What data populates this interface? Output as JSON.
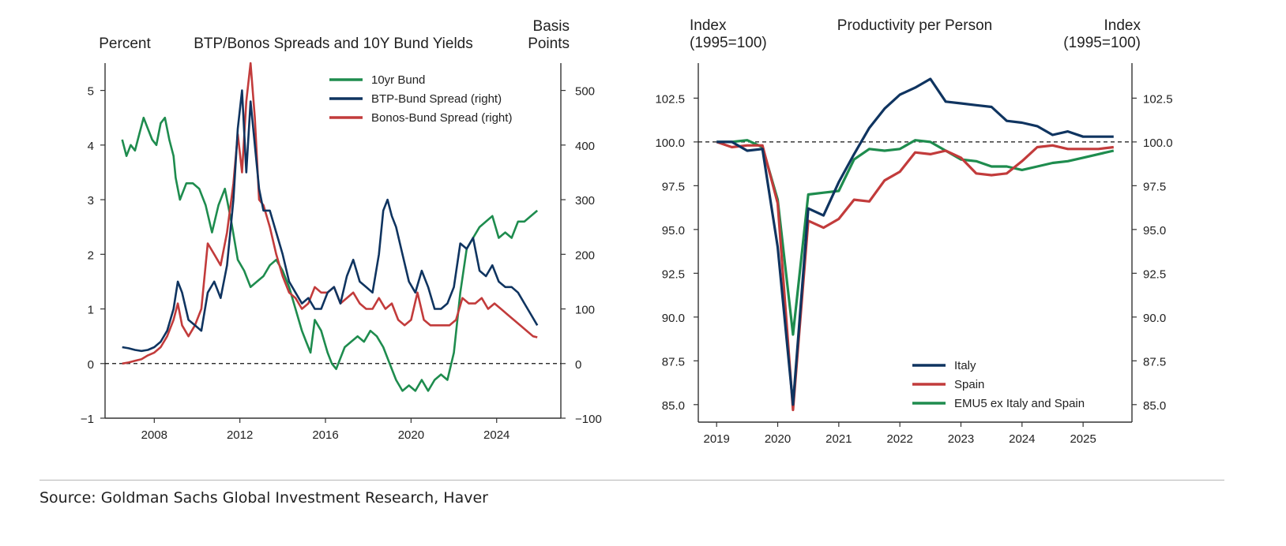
{
  "source": "Source: Goldman Sachs Global Investment Research, Haver",
  "chart_data": [
    {
      "type": "line",
      "title": "BTP/Bonos Spreads and 10Y Bund Yields",
      "ylabel_left": "Percent",
      "ylabel_right": [
        "Basis",
        "Points"
      ],
      "xlim": [
        2005.7,
        2027.0
      ],
      "ylim_left": [
        -1,
        5.5
      ],
      "ylim_right": [
        -100,
        550
      ],
      "x_ticks": [
        2008,
        2012,
        2016,
        2020,
        2024
      ],
      "y_ticks_left": [
        -1,
        0,
        1,
        2,
        3,
        4,
        5
      ],
      "y_ticks_right": [
        -100,
        0,
        100,
        200,
        300,
        400,
        500
      ],
      "y_tick_labels_left": [
        "−1",
        "0",
        "1",
        "2",
        "3",
        "4",
        "5"
      ],
      "y_tick_labels_right": [
        "−100",
        "0",
        "100",
        "200",
        "300",
        "400",
        "500"
      ],
      "reference_line": 0,
      "legend_position": "top-right",
      "series": [
        {
          "name": "10yr Bund",
          "axis": "left",
          "color": "#1e8c4e",
          "x": [
            2006.5,
            2006.7,
            2006.9,
            2007.1,
            2007.3,
            2007.5,
            2007.7,
            2007.9,
            2008.1,
            2008.3,
            2008.5,
            2008.7,
            2008.9,
            2009.0,
            2009.2,
            2009.5,
            2009.8,
            2010.1,
            2010.4,
            2010.7,
            2011.0,
            2011.3,
            2011.6,
            2011.9,
            2012.2,
            2012.5,
            2012.8,
            2013.1,
            2013.4,
            2013.7,
            2014.0,
            2014.3,
            2014.6,
            2014.9,
            2015.1,
            2015.3,
            2015.5,
            2015.8,
            2016.1,
            2016.3,
            2016.5,
            2016.7,
            2016.9,
            2017.2,
            2017.5,
            2017.8,
            2018.1,
            2018.4,
            2018.7,
            2019.0,
            2019.3,
            2019.6,
            2019.9,
            2020.2,
            2020.5,
            2020.8,
            2021.1,
            2021.4,
            2021.7,
            2022.0,
            2022.3,
            2022.6,
            2022.9,
            2023.2,
            2023.5,
            2023.8,
            2024.1,
            2024.4,
            2024.7,
            2025.0,
            2025.3,
            2025.6,
            2025.9
          ],
          "y": [
            4.1,
            3.8,
            4.0,
            3.9,
            4.2,
            4.5,
            4.3,
            4.1,
            4.0,
            4.4,
            4.5,
            4.1,
            3.8,
            3.4,
            3.0,
            3.3,
            3.3,
            3.2,
            2.9,
            2.4,
            2.9,
            3.2,
            2.6,
            1.9,
            1.7,
            1.4,
            1.5,
            1.6,
            1.8,
            1.9,
            1.7,
            1.4,
            1.0,
            0.6,
            0.4,
            0.2,
            0.8,
            0.6,
            0.2,
            0.0,
            -0.1,
            0.1,
            0.3,
            0.4,
            0.5,
            0.4,
            0.6,
            0.5,
            0.3,
            0.0,
            -0.3,
            -0.5,
            -0.4,
            -0.5,
            -0.3,
            -0.5,
            -0.3,
            -0.2,
            -0.3,
            0.2,
            1.3,
            2.1,
            2.3,
            2.5,
            2.6,
            2.7,
            2.3,
            2.4,
            2.3,
            2.6,
            2.6,
            2.7,
            2.8
          ]
        },
        {
          "name": "BTP-Bund Spread (right)",
          "axis": "right",
          "color": "#0f3460",
          "x": [
            2006.5,
            2006.8,
            2007.1,
            2007.4,
            2007.7,
            2008.0,
            2008.3,
            2008.6,
            2008.9,
            2009.1,
            2009.3,
            2009.6,
            2009.9,
            2010.2,
            2010.5,
            2010.8,
            2011.1,
            2011.4,
            2011.7,
            2011.9,
            2012.1,
            2012.3,
            2012.5,
            2012.7,
            2012.9,
            2013.1,
            2013.4,
            2013.7,
            2014.0,
            2014.3,
            2014.6,
            2014.9,
            2015.2,
            2015.5,
            2015.8,
            2016.1,
            2016.4,
            2016.7,
            2017.0,
            2017.3,
            2017.6,
            2017.9,
            2018.2,
            2018.5,
            2018.7,
            2018.9,
            2019.1,
            2019.3,
            2019.6,
            2019.9,
            2020.2,
            2020.5,
            2020.8,
            2021.1,
            2021.4,
            2021.7,
            2022.0,
            2022.3,
            2022.6,
            2022.9,
            2023.2,
            2023.5,
            2023.8,
            2024.1,
            2024.4,
            2024.7,
            2025.0,
            2025.3,
            2025.6,
            2025.9
          ],
          "y": [
            30,
            28,
            25,
            23,
            25,
            30,
            40,
            60,
            100,
            150,
            130,
            80,
            70,
            60,
            130,
            150,
            120,
            180,
            300,
            430,
            500,
            350,
            480,
            400,
            320,
            280,
            280,
            240,
            200,
            150,
            130,
            110,
            120,
            100,
            100,
            130,
            140,
            110,
            160,
            190,
            150,
            140,
            130,
            200,
            280,
            300,
            270,
            250,
            200,
            150,
            130,
            170,
            140,
            100,
            100,
            110,
            140,
            220,
            210,
            230,
            170,
            160,
            180,
            150,
            140,
            140,
            130,
            110,
            90,
            70
          ]
        },
        {
          "name": "Bonos-Bund Spread (right)",
          "axis": "right",
          "color": "#c23b3b",
          "x": [
            2006.5,
            2006.8,
            2007.1,
            2007.4,
            2007.7,
            2008.0,
            2008.3,
            2008.6,
            2008.9,
            2009.1,
            2009.3,
            2009.6,
            2009.9,
            2010.2,
            2010.5,
            2010.8,
            2011.1,
            2011.4,
            2011.7,
            2011.9,
            2012.1,
            2012.3,
            2012.5,
            2012.7,
            2012.9,
            2013.1,
            2013.4,
            2013.7,
            2014.0,
            2014.3,
            2014.6,
            2014.9,
            2015.2,
            2015.5,
            2015.8,
            2016.1,
            2016.4,
            2016.7,
            2017.0,
            2017.3,
            2017.6,
            2017.9,
            2018.2,
            2018.5,
            2018.8,
            2019.1,
            2019.4,
            2019.7,
            2020.0,
            2020.3,
            2020.6,
            2020.9,
            2021.2,
            2021.5,
            2021.8,
            2022.1,
            2022.4,
            2022.7,
            2023.0,
            2023.3,
            2023.6,
            2023.9,
            2024.2,
            2024.5,
            2024.8,
            2025.1,
            2025.4,
            2025.7,
            2025.9
          ],
          "y": [
            0,
            2,
            5,
            8,
            15,
            20,
            30,
            50,
            80,
            110,
            70,
            50,
            70,
            100,
            220,
            200,
            180,
            240,
            330,
            420,
            350,
            480,
            550,
            450,
            300,
            290,
            250,
            200,
            160,
            130,
            120,
            100,
            110,
            140,
            130,
            130,
            140,
            110,
            120,
            130,
            110,
            100,
            100,
            120,
            100,
            110,
            80,
            70,
            80,
            130,
            80,
            70,
            70,
            70,
            70,
            80,
            120,
            110,
            110,
            120,
            100,
            110,
            100,
            90,
            80,
            70,
            60,
            50,
            48
          ]
        }
      ]
    },
    {
      "type": "line",
      "title": "Productivity per Person",
      "ylabel_left": [
        "Index",
        "(1995=100)"
      ],
      "ylabel_right": [
        "Index",
        "(1995=100)"
      ],
      "xlim": [
        2018.7,
        2025.8
      ],
      "ylim": [
        84,
        104.5
      ],
      "x_ticks": [
        2019,
        2020,
        2021,
        2022,
        2023,
        2024,
        2025
      ],
      "y_ticks": [
        85.0,
        87.5,
        90.0,
        92.5,
        95.0,
        97.5,
        100.0,
        102.5
      ],
      "y_tick_labels": [
        "85.0",
        "87.5",
        "90.0",
        "92.5",
        "95.0",
        "97.5",
        "100.0",
        "102.5"
      ],
      "reference_line": 100,
      "legend_position": "bottom-right",
      "series": [
        {
          "name": "Italy",
          "color": "#0f3460",
          "x": [
            2019.0,
            2019.25,
            2019.5,
            2019.75,
            2020.0,
            2020.25,
            2020.5,
            2020.75,
            2021.0,
            2021.25,
            2021.5,
            2021.75,
            2022.0,
            2022.25,
            2022.5,
            2022.75,
            2023.0,
            2023.25,
            2023.5,
            2023.75,
            2024.0,
            2024.25,
            2024.5,
            2024.75,
            2025.0,
            2025.25,
            2025.5
          ],
          "y": [
            100.0,
            100.0,
            99.5,
            99.6,
            94.0,
            85.0,
            96.2,
            95.8,
            97.7,
            99.3,
            100.8,
            101.9,
            102.7,
            103.1,
            103.6,
            102.3,
            102.2,
            102.1,
            102.0,
            101.2,
            101.1,
            100.9,
            100.4,
            100.6,
            100.3,
            100.3,
            100.3
          ]
        },
        {
          "name": "Spain",
          "color": "#c23b3b",
          "x": [
            2019.0,
            2019.25,
            2019.5,
            2019.75,
            2020.0,
            2020.25,
            2020.5,
            2020.75,
            2021.0,
            2021.25,
            2021.5,
            2021.75,
            2022.0,
            2022.25,
            2022.5,
            2022.75,
            2023.0,
            2023.25,
            2023.5,
            2023.75,
            2024.0,
            2024.25,
            2024.5,
            2024.75,
            2025.0,
            2025.25,
            2025.5
          ],
          "y": [
            100.0,
            99.7,
            99.8,
            99.8,
            96.5,
            84.7,
            95.5,
            95.1,
            95.6,
            96.7,
            96.6,
            97.8,
            98.3,
            99.4,
            99.3,
            99.5,
            99.1,
            98.2,
            98.1,
            98.2,
            98.9,
            99.7,
            99.8,
            99.6,
            99.6,
            99.6,
            99.7
          ]
        },
        {
          "name": "EMU5 ex Italy and Spain",
          "color": "#1e8c4e",
          "x": [
            2019.0,
            2019.25,
            2019.5,
            2019.75,
            2020.0,
            2020.25,
            2020.5,
            2020.75,
            2021.0,
            2021.25,
            2021.5,
            2021.75,
            2022.0,
            2022.25,
            2022.5,
            2022.75,
            2023.0,
            2023.25,
            2023.5,
            2023.75,
            2024.0,
            2024.25,
            2024.5,
            2024.75,
            2025.0,
            2025.25,
            2025.5
          ],
          "y": [
            100.0,
            100.0,
            100.1,
            99.7,
            96.7,
            89.0,
            97.0,
            97.1,
            97.2,
            99.0,
            99.6,
            99.5,
            99.6,
            100.1,
            100.0,
            99.5,
            99.0,
            98.9,
            98.6,
            98.6,
            98.4,
            98.6,
            98.8,
            98.9,
            99.1,
            99.3,
            99.5
          ]
        }
      ]
    }
  ]
}
